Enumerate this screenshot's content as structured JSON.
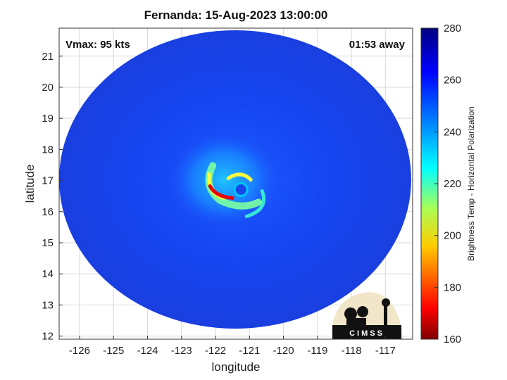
{
  "chart_data": {
    "type": "heatmap",
    "title": "Fernanda: 15-Aug-2023 13:00:00",
    "xlabel": "longitude",
    "ylabel": "latitude",
    "xlim": [
      -126.6,
      -116.2
    ],
    "ylim": [
      11.9,
      21.9
    ],
    "xticks": [
      -126,
      -125,
      -124,
      -123,
      -122,
      -121,
      -120,
      -119,
      -118,
      -117
    ],
    "yticks": [
      12,
      13,
      14,
      15,
      16,
      17,
      18,
      19,
      20,
      21
    ],
    "grid": true,
    "annotations": {
      "left": "Vmax: 95 kts",
      "right": "01:53 away"
    },
    "colorbar": {
      "label": "Brightness Temp - Horizontal Polarization",
      "range": [
        160,
        280
      ],
      "ticks": [
        160,
        180,
        200,
        220,
        240,
        260,
        280
      ]
    },
    "storm_center": {
      "lon": -121.5,
      "lat": 16.8
    },
    "logo_text": "CIMSS"
  }
}
